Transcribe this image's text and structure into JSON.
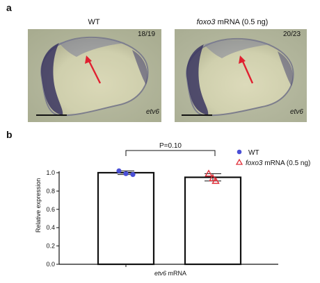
{
  "panel_a": {
    "letter": "a",
    "left": {
      "title": "WT",
      "count": "18/19",
      "gene": "etv6"
    },
    "right": {
      "title_italic": "foxo3",
      "title_rest": " mRNA (0.5 ng)",
      "count": "20/23",
      "gene": "etv6"
    }
  },
  "panel_b": {
    "letter": "b",
    "pvalue": "P=0.10",
    "legend": {
      "wt": "WT",
      "foxo_italic": "foxo3",
      "foxo_rest": " mRNA (0.5 ng)"
    },
    "xlabel_italic": "etv6",
    "xlabel_rest": " mRNA"
  },
  "chart_data": {
    "type": "bar",
    "categories": [
      "WT",
      "foxo3 mRNA (0.5 ng)"
    ],
    "series": [
      {
        "name": "WT",
        "values": [
          1.0,
          null
        ],
        "points": [
          1.02,
          0.99,
          0.98
        ]
      },
      {
        "name": "foxo3 mRNA (0.5 ng)",
        "values": [
          null,
          0.95
        ],
        "points": [
          0.99,
          0.94,
          0.91
        ]
      }
    ],
    "bar_values": [
      1.0,
      0.95
    ],
    "error": [
      0.02,
      0.04
    ],
    "ylabel": "Relative expression",
    "xlabel": "etv6 mRNA",
    "ylim": [
      0,
      1.0
    ],
    "yticks": [
      "0.0",
      "0.2",
      "0.4",
      "0.6",
      "0.8",
      "1.0"
    ],
    "annotation": "P=0.10",
    "colors": {
      "wt": "#4a4fd6",
      "foxo": "#e0303a"
    }
  }
}
